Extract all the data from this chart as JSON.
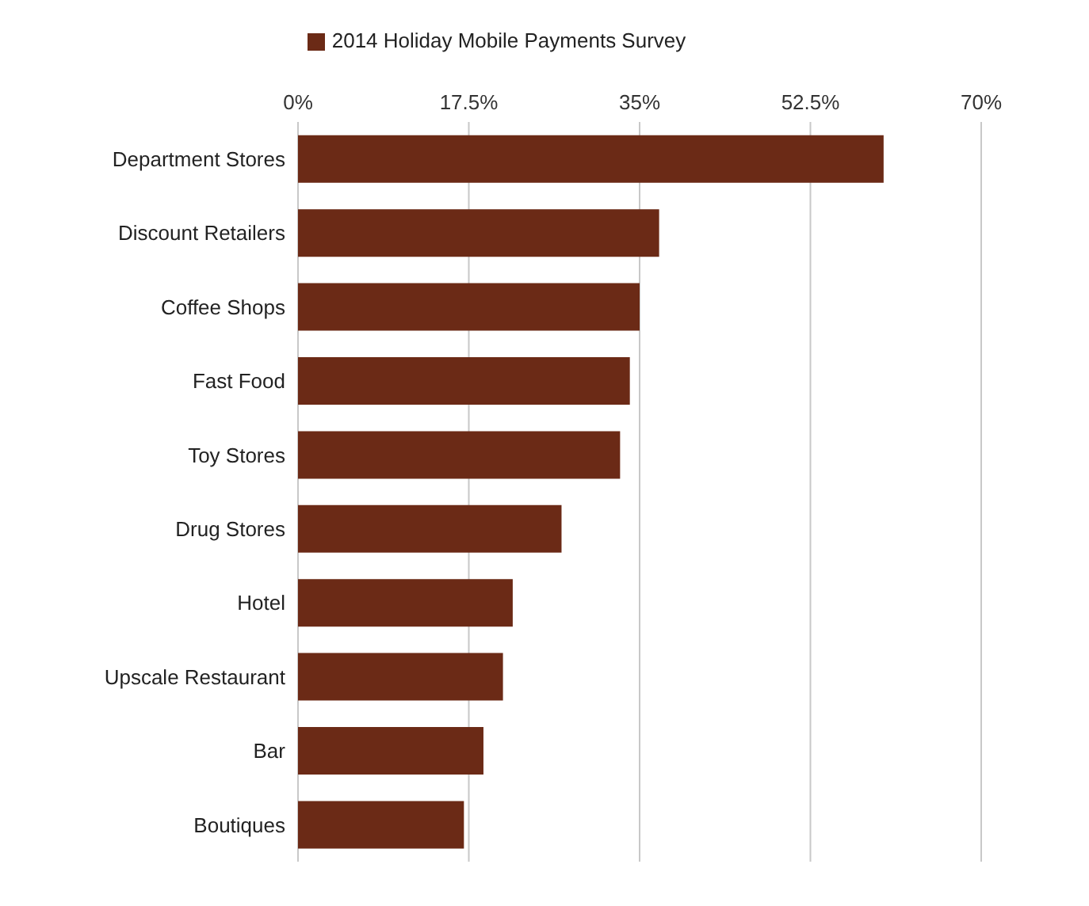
{
  "chart_data": {
    "type": "bar",
    "orientation": "horizontal",
    "categories": [
      "Department Stores",
      "Discount Retailers",
      "Coffee Shops",
      "Fast Food",
      "Toy Stores",
      "Drug Stores",
      "Hotel",
      "Upscale Restaurant",
      "Bar",
      "Boutiques"
    ],
    "series": [
      {
        "name": "2014 Holiday Mobile Payments Survey",
        "color": "#6b2a16",
        "values": [
          60,
          37,
          35,
          34,
          33,
          27,
          22,
          21,
          19,
          17
        ]
      }
    ],
    "xlim": [
      0,
      70
    ],
    "xticks": [
      {
        "value": 0,
        "label": "0%"
      },
      {
        "value": 17.5,
        "label": "17.5%"
      },
      {
        "value": 35,
        "label": "35%"
      },
      {
        "value": 52.5,
        "label": "52.5%"
      },
      {
        "value": 70,
        "label": "70%"
      }
    ],
    "grid": "x",
    "legend": "top"
  }
}
